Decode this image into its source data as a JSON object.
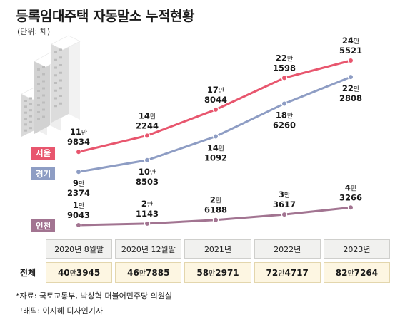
{
  "title": "등록임대주택 자동말소 누적현황",
  "unit": "(단위: 채)",
  "chart_data": {
    "type": "line",
    "categories": [
      "2020년 8월말",
      "2020년 12월말",
      "2021년",
      "2022년",
      "2023년"
    ],
    "series": [
      {
        "name": "서울",
        "color": "#e8566e",
        "values": [
          119834,
          142244,
          178044,
          221598,
          245521
        ],
        "labels": [
          [
            "11",
            "9834"
          ],
          [
            "14",
            "2244"
          ],
          [
            "17",
            "8044"
          ],
          [
            "22",
            "1598"
          ],
          [
            "24",
            "5521"
          ]
        ]
      },
      {
        "name": "경기",
        "color": "#8e9dc4",
        "values": [
          92374,
          108503,
          141092,
          186260,
          222808
        ],
        "labels": [
          [
            "9",
            "2374"
          ],
          [
            "10",
            "8503"
          ],
          [
            "14",
            "1092"
          ],
          [
            "18",
            "6260"
          ],
          [
            "22",
            "2808"
          ]
        ]
      },
      {
        "name": "인천",
        "color": "#a27491",
        "values": [
          19043,
          21143,
          26188,
          33617,
          43266
        ],
        "labels": [
          [
            "1",
            "9043"
          ],
          [
            "2",
            "1143"
          ],
          [
            "2",
            "6188"
          ],
          [
            "3",
            "3617"
          ],
          [
            "4",
            "3266"
          ]
        ]
      }
    ],
    "man_suffix": "만"
  },
  "table": {
    "row_label": "전체",
    "values": [
      [
        "40",
        "3945"
      ],
      [
        "46",
        "7885"
      ],
      [
        "58",
        "2971"
      ],
      [
        "72",
        "4717"
      ],
      [
        "82",
        "7264"
      ]
    ]
  },
  "source": "*자료: 국토교통부, 박상혁 더불어민주당 의원실",
  "credit": "그래픽: 이지혜 디자인기자"
}
